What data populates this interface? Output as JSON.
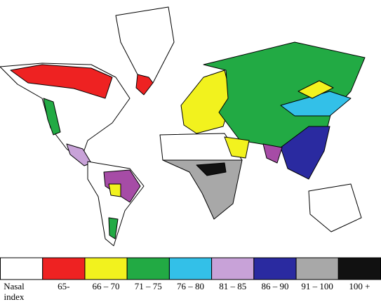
{
  "legend": {
    "title_lines": [
      "Nasal",
      "index"
    ],
    "items": [
      {
        "label": "",
        "color": "#ffffff"
      },
      {
        "label": "65-",
        "color": "#ee2222"
      },
      {
        "label": "66 – 70",
        "color": "#f2f21e"
      },
      {
        "label": "71 – 75",
        "color": "#22aa44"
      },
      {
        "label": "76 – 80",
        "color": "#33c0e8"
      },
      {
        "label": "81 – 85",
        "color": "#c8a2d8"
      },
      {
        "label": "86 – 90",
        "color": "#2a2aa0"
      },
      {
        "label": "91 – 100",
        "color": "#a8a8a8"
      },
      {
        "label": "100 +",
        "color": "#111111"
      }
    ]
  }
}
